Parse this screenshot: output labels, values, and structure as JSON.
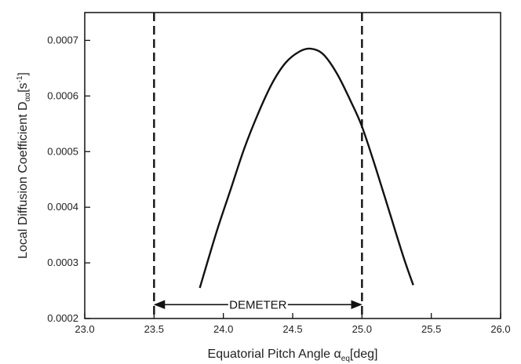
{
  "chart_data": {
    "type": "line",
    "xlabel": {
      "prefix": "Equatorial Pitch Angle α",
      "subscript": "eq",
      "suffix": "[deg]"
    },
    "ylabel": {
      "prefix": "Local Diffusion Coefficient D",
      "subscript": "αα",
      "unit_open": "[s",
      "unit_sup": "-1",
      "unit_close": "]"
    },
    "xlim": [
      23.0,
      26.0
    ],
    "ylim": [
      0.0002,
      0.00075
    ],
    "x_ticks": [
      "23.0",
      "23.5",
      "24.0",
      "24.5",
      "25.0",
      "25.5",
      "26.0"
    ],
    "y_ticks": [
      "0.0002",
      "0.0003",
      "0.0004",
      "0.0005",
      "0.0006",
      "0.0007"
    ],
    "grid": false,
    "series": [
      {
        "x": [
          23.83,
          23.95,
          24.05,
          24.15,
          24.25,
          24.35,
          24.45,
          24.55,
          24.63,
          24.72,
          24.82,
          24.92,
          25.0,
          25.1,
          25.2,
          25.3,
          25.37
        ],
        "y": [
          0.000255,
          0.000355,
          0.00043,
          0.000505,
          0.000568,
          0.000622,
          0.00066,
          0.00068,
          0.000685,
          0.000675,
          0.00064,
          0.00059,
          0.000545,
          0.00047,
          0.00039,
          0.00031,
          0.00026
        ]
      }
    ],
    "vlines": [
      23.5,
      25.0
    ],
    "annotation": {
      "text": "DEMETER",
      "x_start": 23.5,
      "x_end": 25.0,
      "y": 0.000225
    }
  }
}
